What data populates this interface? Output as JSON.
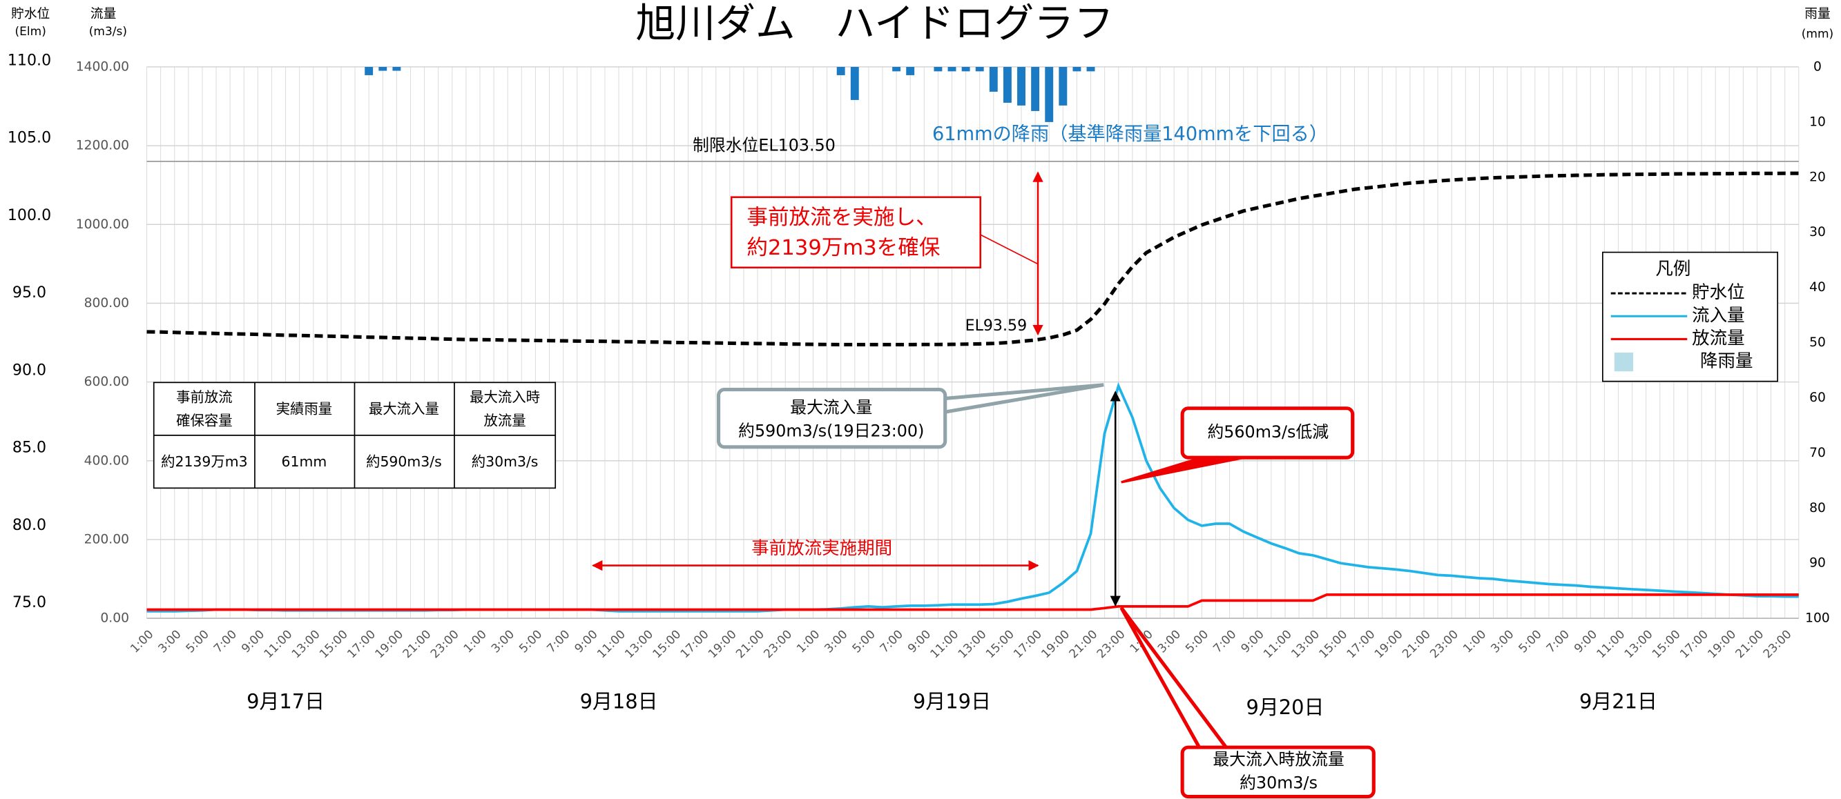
{
  "chart_data": {
    "type": "line",
    "title": "旭川ダム　ハイドログラフ",
    "y2_label": [
      "貯水位",
      "(Elm)"
    ],
    "y_label": [
      "流量",
      "(m3/s)"
    ],
    "y3_label": [
      "雨量",
      "(mm)"
    ],
    "categories": [
      "1:00",
      null,
      "3:00",
      null,
      "5:00",
      null,
      "7:00",
      null,
      "9:00",
      null,
      "11:00",
      null,
      "13:00",
      null,
      "15:00",
      null,
      "17:00",
      null,
      "19:00",
      null,
      "21:00",
      null,
      "23:00",
      null,
      "1:00",
      null,
      "3:00",
      null,
      "5:00",
      null,
      "7:00",
      null,
      "9:00",
      null,
      "11:00",
      null,
      "13:00",
      null,
      "15:00",
      null,
      "17:00",
      null,
      "19:00",
      null,
      "21:00",
      null,
      "23:00",
      null,
      "1:00",
      null,
      "3:00",
      null,
      "5:00",
      null,
      "7:00",
      null,
      "9:00",
      null,
      "11:00",
      null,
      "13:00",
      null,
      "15:00",
      null,
      "17:00",
      null,
      "19:00",
      null,
      "21:00",
      null,
      "23:00",
      null,
      "1:00",
      null,
      "3:00",
      null,
      "5:00",
      null,
      "7:00",
      null,
      "9:00",
      null,
      "11:00",
      null,
      "13:00",
      null,
      "15:00",
      null,
      "17:00",
      null,
      "19:00",
      null,
      "21:00",
      null,
      "23:00",
      null,
      "1:00",
      null,
      "3:00",
      null,
      "5:00",
      null,
      "7:00",
      null,
      "9:00",
      null,
      "11:00",
      null,
      "13:00",
      null,
      "15:00",
      null,
      "17:00",
      null,
      "19:00",
      null,
      "21:00",
      null,
      "23:00",
      null
    ],
    "days": [
      "9月17日",
      "9月18日",
      "9月19日",
      "9月20日",
      "9月21日"
    ],
    "ylim": [
      0,
      1400
    ],
    "yticks": [
      {
        "value": 0,
        "label": "0.00"
      },
      {
        "value": 200,
        "label": "200.00"
      },
      {
        "value": 400,
        "label": "400.00"
      },
      {
        "value": 600,
        "label": "600.00"
      },
      {
        "value": 800,
        "label": "800.00"
      },
      {
        "value": 1000,
        "label": "1000.00"
      },
      {
        "value": 1200,
        "label": "1200.00"
      },
      {
        "value": 1400,
        "label": "1400.00"
      }
    ],
    "y2lim": [
      74,
      109.6
    ],
    "y2ticks": [
      {
        "value": 75,
        "label": "75.0"
      },
      {
        "value": 80,
        "label": "80.0"
      },
      {
        "value": 85,
        "label": "85.0"
      },
      {
        "value": 90,
        "label": "90.0"
      },
      {
        "value": 95,
        "label": "95.0"
      },
      {
        "value": 100,
        "label": "100.0"
      },
      {
        "value": 105,
        "label": "105.0"
      },
      {
        "value": 110,
        "label": "110.0"
      }
    ],
    "y3lim": [
      100,
      0
    ],
    "y3ticks": [
      0,
      10,
      20,
      30,
      40,
      50,
      60,
      70,
      80,
      90,
      100
    ],
    "grid": true,
    "series": [
      {
        "name": "貯水位",
        "color": "#000000",
        "dash": true,
        "axis": "y2",
        "values": [
          92.5,
          92.48,
          92.46,
          92.43,
          92.41,
          92.39,
          92.37,
          92.35,
          92.33,
          92.3,
          92.28,
          92.26,
          92.24,
          92.22,
          92.2,
          92.17,
          92.15,
          92.13,
          92.11,
          92.09,
          92.07,
          92.04,
          92.02,
          92.0,
          91.99,
          91.98,
          91.96,
          91.95,
          91.94,
          91.93,
          91.91,
          91.9,
          91.89,
          91.88,
          91.86,
          91.85,
          91.84,
          91.83,
          91.81,
          91.8,
          91.79,
          91.78,
          91.76,
          91.75,
          91.74,
          91.73,
          91.71,
          91.7,
          91.69,
          91.68,
          91.67,
          91.67,
          91.67,
          91.67,
          91.67,
          91.67,
          91.68,
          91.68,
          91.69,
          91.7,
          91.72,
          91.75,
          91.8,
          91.88,
          91.97,
          92.1,
          92.3,
          92.6,
          93.3,
          94.3,
          95.6,
          96.7,
          97.6,
          98.1,
          98.6,
          99.0,
          99.4,
          99.7,
          100.0,
          100.3,
          100.5,
          100.7,
          100.9,
          101.1,
          101.25,
          101.4,
          101.55,
          101.7,
          101.8,
          101.9,
          102.0,
          102.1,
          102.17,
          102.24,
          102.3,
          102.35,
          102.4,
          102.44,
          102.48,
          102.5,
          102.53,
          102.56,
          102.58,
          102.6,
          102.62,
          102.64,
          102.65,
          102.66,
          102.67,
          102.68,
          102.69,
          102.7,
          102.7,
          102.71,
          102.71,
          102.72,
          102.72,
          102.72,
          102.73,
          102.73
        ]
      },
      {
        "name": "流入量",
        "color": "#1fb3e8",
        "axis": "y",
        "values": [
          18,
          18,
          18,
          19,
          20,
          22,
          22,
          22,
          21,
          21,
          20,
          20,
          20,
          20,
          20,
          20,
          20,
          20,
          20,
          20,
          20,
          21,
          21,
          22,
          22,
          22,
          22,
          22,
          22,
          22,
          22,
          22,
          22,
          20,
          18,
          18,
          18,
          18,
          18,
          18,
          18,
          18,
          18,
          18,
          18,
          20,
          22,
          22,
          22,
          23,
          25,
          28,
          30,
          28,
          30,
          32,
          32,
          33,
          35,
          35,
          35,
          36,
          42,
          50,
          57,
          65,
          90,
          120,
          215,
          470,
          590,
          510,
          400,
          330,
          280,
          250,
          235,
          240,
          240,
          220,
          205,
          190,
          178,
          165,
          160,
          150,
          140,
          135,
          130,
          127,
          124,
          120,
          115,
          110,
          108,
          105,
          102,
          100,
          96,
          93,
          90,
          87,
          85,
          83,
          80,
          78,
          76,
          74,
          72,
          70,
          68,
          66,
          64,
          62,
          60,
          58,
          56,
          56,
          55,
          55
        ]
      },
      {
        "name": "放流量",
        "color": "#ff0000",
        "axis": "y",
        "values": [
          22,
          22,
          22,
          22,
          22,
          22,
          22,
          22,
          22,
          22,
          22,
          22,
          22,
          22,
          22,
          22,
          22,
          22,
          22,
          22,
          22,
          22,
          22,
          22,
          22,
          22,
          22,
          22,
          22,
          22,
          22,
          22,
          22,
          22,
          22,
          22,
          22,
          22,
          22,
          22,
          22,
          22,
          22,
          22,
          22,
          22,
          22,
          22,
          22,
          22,
          22,
          22,
          22,
          22,
          22,
          22,
          22,
          22,
          22,
          22,
          22,
          22,
          22,
          22,
          22,
          22,
          22,
          22,
          22,
          26,
          30,
          30,
          30,
          30,
          30,
          30,
          45,
          45,
          45,
          45,
          45,
          45,
          45,
          45,
          45,
          60,
          60,
          60,
          60,
          60,
          60,
          60,
          60,
          60,
          60,
          60,
          60,
          60,
          60,
          60,
          60,
          60,
          60,
          60,
          60,
          60,
          60,
          60,
          60,
          60,
          60,
          60,
          60,
          60,
          60,
          60,
          60,
          60,
          60,
          60
        ]
      },
      {
        "name": "降雨量",
        "color": "#1a7bc4",
        "legend_color": "#b7dde8",
        "axis": "y3",
        "values": [
          0,
          0,
          0,
          0,
          0,
          0,
          0,
          0,
          0,
          0,
          0,
          0,
          0,
          0,
          0,
          0,
          1.5,
          0.7,
          0.7,
          0,
          0,
          0,
          0,
          0,
          0,
          0,
          0,
          0,
          0,
          0,
          0,
          0,
          0,
          0,
          0,
          0,
          0,
          0,
          0,
          0,
          0,
          0,
          0,
          0,
          0,
          0,
          0,
          0,
          0,
          0,
          1.5,
          6,
          0,
          0,
          0.8,
          1.5,
          0,
          0.8,
          0.8,
          0.8,
          0.8,
          4.5,
          6.5,
          7,
          8,
          10,
          7,
          0.8,
          0.8,
          0,
          0,
          0,
          0,
          0,
          0,
          0,
          0,
          0,
          0,
          0,
          0,
          0,
          0,
          0,
          0,
          0,
          0,
          0,
          0,
          0,
          0,
          0,
          0,
          0,
          0,
          0,
          0,
          0,
          0,
          0,
          0,
          0,
          0,
          0,
          0,
          0,
          0,
          0,
          0,
          0,
          0,
          0,
          0,
          0,
          0,
          0,
          0,
          0,
          0,
          0
        ]
      }
    ],
    "legend_title": "凡例",
    "limit": {
      "value": 103.5,
      "label": "制限水位EL103.50"
    },
    "annotations": {
      "rain_total": "61mmの降雨（基準降雨量140mmを下回る）",
      "release": [
        "事前放流を実施し、",
        "約2139万m3を確保"
      ],
      "el_label": "EL93.59",
      "peak": [
        "最大流入量",
        "約590m3/s(19日23:00)"
      ],
      "reduction": "約560m3/s低減",
      "peak_release": [
        "最大流入時放流量",
        "約30m3/s"
      ],
      "period": "事前放流実施期間"
    },
    "table": {
      "header": [
        [
          "事前放流",
          "確保容量"
        ],
        [
          "実績雨量"
        ],
        [
          "最大流入量"
        ],
        [
          "最大流入時",
          "放流量"
        ]
      ],
      "values": [
        "約2139万m3",
        "61mm",
        "約590m3/s",
        "約30m3/s"
      ]
    }
  }
}
